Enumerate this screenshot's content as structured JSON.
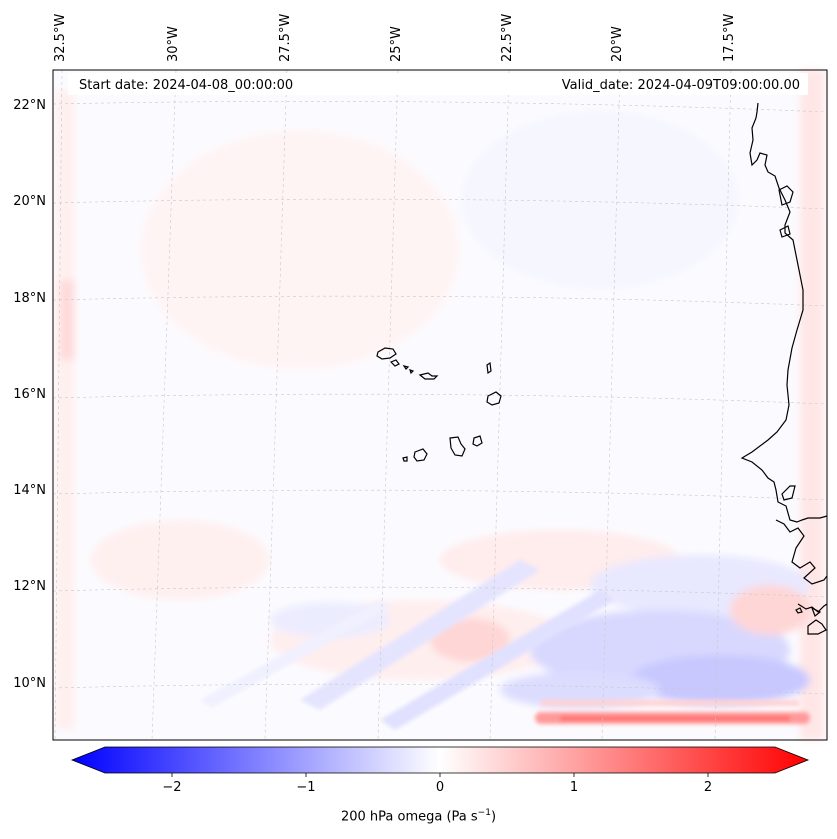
{
  "map": {
    "start_date": "Start date: 2024-04-08_00:00:00",
    "valid_date": "Valid_date: 2024-04-09T09:00:00.00",
    "lon_labels": [
      "32.5°W",
      "30°W",
      "27.5°W",
      "25°W",
      "22.5°W",
      "20°W",
      "17.5°W"
    ],
    "lat_labels": [
      "22°N",
      "20°N",
      "18°N",
      "16°N",
      "14°N",
      "12°N",
      "10°N"
    ],
    "variable": "200 hPa omega",
    "colorbar": {
      "label": "200 hPa omega (Pa s",
      "label_sup": "−1",
      "label_end": ")",
      "ticks": [
        "−2",
        "−1",
        "0",
        "1",
        "2"
      ],
      "tick_values": [
        -2,
        -1,
        0,
        1,
        2
      ],
      "range": [
        -2.6,
        2.6
      ],
      "cmap_low": "#0000ff",
      "cmap_mid": "#ffffff",
      "cmap_high": "#ff0000"
    },
    "colors": {
      "coastline": "#000000",
      "gridline": "#c8c8c8"
    }
  }
}
